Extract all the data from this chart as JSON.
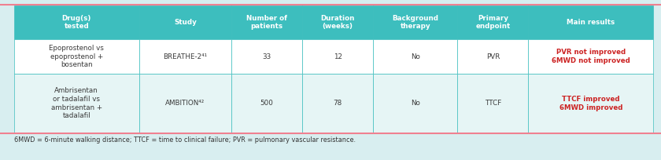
{
  "header": [
    "Drug(s)\ntested",
    "Study",
    "Number of\npatients",
    "Duration\n(weeks)",
    "Background\ntherapy",
    "Primary\nendpoint",
    "Main results"
  ],
  "rows": [
    [
      "Epoprostenol vs\nepoprostenol +\nbosentan",
      "BREATHE-2⁴¹",
      "33",
      "12",
      "No",
      "PVR",
      "PVR not improved\n6MWD not improved"
    ],
    [
      "Ambrisentan\nor tadalafil vs\nambrisentan +\ntadalafil",
      "AMBITION⁴²",
      "500",
      "78",
      "No",
      "TTCF",
      "TTCF improved\n6MWD improved"
    ]
  ],
  "footnote": "6MWD = 6-minute walking distance; TTCF = time to clinical failure; PVR = pulmonary vascular resistance.",
  "header_bg": "#3dbebe",
  "row0_bg": "#ffffff",
  "row1_bg": "#e6f5f5",
  "header_color": "#ffffff",
  "cell_color": "#3a3a3a",
  "results_color": "#cc2222",
  "border_color": "#3dbebe",
  "top_border_color": "#f08090",
  "bottom_border_color": "#f08090",
  "footnote_color": "#333333",
  "bg_color": "#d8eef0",
  "col_weights": [
    1.55,
    1.15,
    0.88,
    0.88,
    1.05,
    0.88,
    1.55
  ]
}
